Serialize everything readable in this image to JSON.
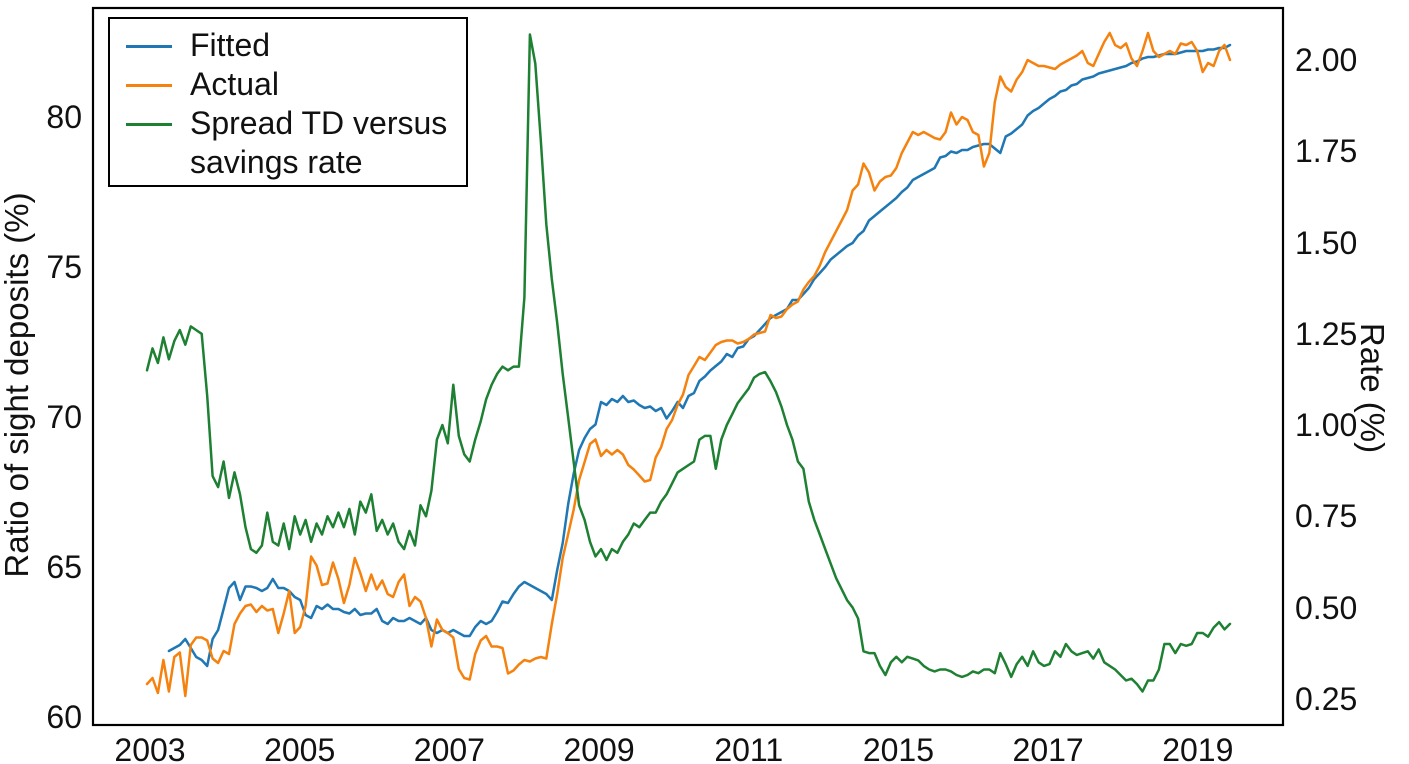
{
  "figure": {
    "type": "dual-axis line chart",
    "background": "#ffffff"
  },
  "legend": {
    "items": [
      {
        "label": "Fitted",
        "color": "#1f77b4"
      },
      {
        "label": "Actual",
        "color": "#f5820e"
      },
      {
        "label": "Spread TD versus savings rate",
        "color": "#1e8032"
      }
    ]
  },
  "axes": {
    "left": {
      "title": "Ratio of sight deposits (%)",
      "ticks": [
        "60",
        "65",
        "70",
        "75",
        "80"
      ]
    },
    "right": {
      "title": "Rate (%)",
      "ticks": [
        "0.25",
        "0.50",
        "0.75",
        "1.00",
        "1.25",
        "1.50",
        "1.75",
        "2.00"
      ]
    },
    "x": {
      "tick_labels": [
        "2003",
        "2005",
        "2007",
        "2009",
        "2011",
        "2015",
        "2017",
        "2019"
      ]
    }
  },
  "chart_data": {
    "type": "line",
    "title": "",
    "x": {
      "description": "monthly observations",
      "start_year": 2003.0,
      "end_year": 2019.5,
      "points": 199
    },
    "left_ylim": [
      59.7,
      83.6
    ],
    "right_ylim": [
      0.18,
      2.14
    ],
    "grid": false,
    "legend_position": "top-left",
    "series": [
      {
        "name": "Fitted",
        "axis": "left",
        "color": "#1f77b4",
        "values": [
          null,
          null,
          null,
          null,
          62.2,
          62.3,
          62.4,
          62.6,
          62.3,
          62.0,
          61.9,
          61.7,
          62.6,
          62.9,
          63.6,
          64.3,
          64.5,
          63.9,
          64.35,
          64.35,
          64.3,
          64.2,
          64.3,
          64.6,
          64.3,
          64.3,
          64.2,
          64.0,
          63.9,
          63.4,
          63.3,
          63.7,
          63.6,
          63.75,
          63.6,
          63.6,
          63.5,
          63.45,
          63.6,
          63.4,
          63.45,
          63.45,
          63.6,
          63.2,
          63.1,
          63.3,
          63.2,
          63.2,
          63.3,
          63.2,
          63.1,
          63.3,
          62.9,
          62.8,
          62.9,
          62.8,
          62.9,
          62.8,
          62.7,
          62.7,
          63.0,
          63.2,
          63.1,
          63.2,
          63.5,
          63.85,
          63.8,
          64.1,
          64.35,
          64.5,
          64.4,
          64.3,
          64.2,
          64.1,
          63.9,
          64.9,
          65.8,
          67.1,
          68.1,
          68.9,
          69.3,
          69.6,
          69.75,
          70.5,
          70.4,
          70.6,
          70.5,
          70.7,
          70.5,
          70.55,
          70.4,
          70.3,
          70.35,
          70.2,
          70.3,
          69.95,
          70.2,
          70.5,
          70.3,
          70.7,
          70.8,
          71.2,
          71.35,
          71.55,
          71.7,
          71.85,
          72.1,
          72.0,
          72.3,
          72.35,
          72.6,
          72.7,
          72.9,
          73.1,
          73.3,
          73.4,
          73.5,
          73.6,
          73.9,
          73.9,
          74.1,
          74.3,
          74.6,
          74.8,
          75.0,
          75.25,
          75.4,
          75.55,
          75.7,
          75.8,
          76.05,
          76.2,
          76.55,
          76.7,
          76.85,
          77.0,
          77.15,
          77.3,
          77.5,
          77.65,
          77.9,
          78.0,
          78.1,
          78.2,
          78.3,
          78.65,
          78.7,
          78.85,
          78.8,
          78.9,
          78.9,
          79.0,
          79.05,
          79.1,
          79.1,
          78.95,
          78.8,
          79.35,
          79.45,
          79.6,
          79.75,
          80.05,
          80.2,
          80.3,
          80.45,
          80.6,
          80.7,
          80.85,
          80.9,
          81.05,
          81.1,
          81.25,
          81.3,
          81.35,
          81.45,
          81.5,
          81.55,
          81.6,
          81.65,
          81.7,
          81.8,
          81.85,
          81.95,
          82.0,
          82.0,
          82.05,
          82.1,
          82.1,
          82.1,
          82.15,
          82.2,
          82.2,
          82.2,
          82.2,
          82.25,
          82.25,
          82.3,
          82.3,
          82.4
        ]
      },
      {
        "name": "Actual",
        "axis": "left",
        "color": "#f5820e",
        "values": [
          61.1,
          61.3,
          60.8,
          61.9,
          60.85,
          62.0,
          62.15,
          60.7,
          62.4,
          62.65,
          62.65,
          62.55,
          61.95,
          61.8,
          62.2,
          62.1,
          63.1,
          63.45,
          63.7,
          63.75,
          63.5,
          63.7,
          63.55,
          63.6,
          62.8,
          63.45,
          64.2,
          62.8,
          63.0,
          63.7,
          65.35,
          65.05,
          64.4,
          64.45,
          65.15,
          64.6,
          63.8,
          64.4,
          65.3,
          64.8,
          64.2,
          64.75,
          64.25,
          64.55,
          64.1,
          64.0,
          64.5,
          64.75,
          63.7,
          64.0,
          63.85,
          63.3,
          62.35,
          63.25,
          62.9,
          62.8,
          62.65,
          61.6,
          61.3,
          61.25,
          62.1,
          62.55,
          62.7,
          62.35,
          62.35,
          62.3,
          61.45,
          61.55,
          61.75,
          61.9,
          61.85,
          61.95,
          62.0,
          61.95,
          63.1,
          64.1,
          65.3,
          66.1,
          66.9,
          67.9,
          68.5,
          69.1,
          69.25,
          68.7,
          68.9,
          68.75,
          68.9,
          68.75,
          68.4,
          68.25,
          68.05,
          67.85,
          67.9,
          68.65,
          69.0,
          69.6,
          69.9,
          70.4,
          70.75,
          71.4,
          71.7,
          72.0,
          71.9,
          72.15,
          72.4,
          72.5,
          72.55,
          72.55,
          72.45,
          72.5,
          72.6,
          72.75,
          72.8,
          72.85,
          73.4,
          73.3,
          73.35,
          73.6,
          73.75,
          73.85,
          74.25,
          74.5,
          74.7,
          75.05,
          75.5,
          75.85,
          76.2,
          76.55,
          76.9,
          77.55,
          77.75,
          78.45,
          78.15,
          77.55,
          77.85,
          78.0,
          78.05,
          78.3,
          78.8,
          79.15,
          79.5,
          79.4,
          79.5,
          79.4,
          79.3,
          79.25,
          79.5,
          80.15,
          79.75,
          80.0,
          79.9,
          79.5,
          79.4,
          78.35,
          78.8,
          80.5,
          81.35,
          81.0,
          80.85,
          81.25,
          81.5,
          81.9,
          81.8,
          81.7,
          81.7,
          81.65,
          81.6,
          81.75,
          81.85,
          81.95,
          82.05,
          82.2,
          81.8,
          81.7,
          82.1,
          82.5,
          82.8,
          82.4,
          82.3,
          82.45,
          81.95,
          81.7,
          82.2,
          82.8,
          82.2,
          82.0,
          82.1,
          82.2,
          82.1,
          82.45,
          82.4,
          82.5,
          82.2,
          81.5,
          81.8,
          81.7,
          82.2,
          82.4,
          81.9
        ]
      },
      {
        "name": "Spread TD versus savings rate",
        "axis": "right",
        "color": "#1e8032",
        "values": [
          1.15,
          1.21,
          1.17,
          1.24,
          1.18,
          1.23,
          1.26,
          1.22,
          1.27,
          1.26,
          1.25,
          1.08,
          0.86,
          0.83,
          0.9,
          0.8,
          0.87,
          0.81,
          0.72,
          0.66,
          0.65,
          0.67,
          0.76,
          0.68,
          0.67,
          0.73,
          0.66,
          0.75,
          0.7,
          0.74,
          0.68,
          0.73,
          0.7,
          0.75,
          0.72,
          0.76,
          0.72,
          0.77,
          0.7,
          0.79,
          0.76,
          0.81,
          0.71,
          0.74,
          0.7,
          0.73,
          0.68,
          0.66,
          0.71,
          0.67,
          0.78,
          0.75,
          0.82,
          0.96,
          1.0,
          0.95,
          1.11,
          0.97,
          0.92,
          0.9,
          0.96,
          1.01,
          1.07,
          1.11,
          1.14,
          1.16,
          1.15,
          1.16,
          1.16,
          1.35,
          2.07,
          1.99,
          1.78,
          1.55,
          1.4,
          1.28,
          1.14,
          1.02,
          0.9,
          0.78,
          0.74,
          0.68,
          0.64,
          0.66,
          0.63,
          0.66,
          0.65,
          0.68,
          0.7,
          0.73,
          0.72,
          0.74,
          0.76,
          0.76,
          0.79,
          0.81,
          0.84,
          0.87,
          0.88,
          0.89,
          0.9,
          0.96,
          0.97,
          0.97,
          0.88,
          0.96,
          1.0,
          1.03,
          1.06,
          1.08,
          1.1,
          1.13,
          1.14,
          1.145,
          1.12,
          1.09,
          1.05,
          1.0,
          0.96,
          0.9,
          0.88,
          0.79,
          0.74,
          0.7,
          0.66,
          0.62,
          0.58,
          0.55,
          0.52,
          0.5,
          0.47,
          0.38,
          0.375,
          0.375,
          0.34,
          0.315,
          0.35,
          0.365,
          0.35,
          0.365,
          0.36,
          0.355,
          0.34,
          0.33,
          0.325,
          0.33,
          0.33,
          0.325,
          0.315,
          0.31,
          0.315,
          0.325,
          0.32,
          0.33,
          0.33,
          0.32,
          0.375,
          0.345,
          0.31,
          0.345,
          0.365,
          0.34,
          0.38,
          0.35,
          0.34,
          0.345,
          0.38,
          0.365,
          0.4,
          0.38,
          0.37,
          0.375,
          0.38,
          0.36,
          0.385,
          0.35,
          0.34,
          0.33,
          0.315,
          0.3,
          0.305,
          0.29,
          0.27,
          0.3,
          0.3,
          0.33,
          0.4,
          0.4,
          0.375,
          0.4,
          0.395,
          0.4,
          0.43,
          0.43,
          0.42,
          0.445,
          0.46,
          0.44,
          0.455
        ]
      }
    ]
  }
}
